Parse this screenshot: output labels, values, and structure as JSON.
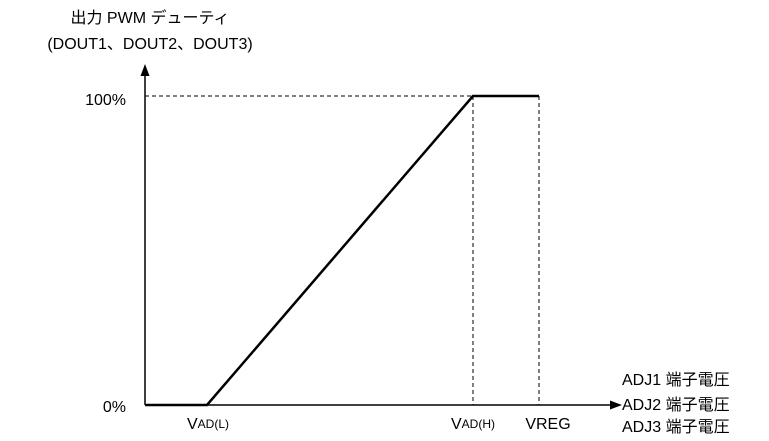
{
  "diagram": {
    "y_axis_title": [
      "出力 PWM デューティ",
      "(DOUT1、DOUT2、DOUT3)"
    ],
    "y_labels": {
      "top": "100%",
      "bottom": "0%"
    },
    "x_labels": [
      {
        "main": "V",
        "sub": "AD(L)"
      },
      {
        "main": "V",
        "sub": "AD(H)"
      },
      {
        "main": "VREG"
      }
    ],
    "x_axis_title": [
      "ADJ1 端子電圧",
      "ADJ2 端子電圧",
      "ADJ3 端子電圧"
    ]
  }
}
